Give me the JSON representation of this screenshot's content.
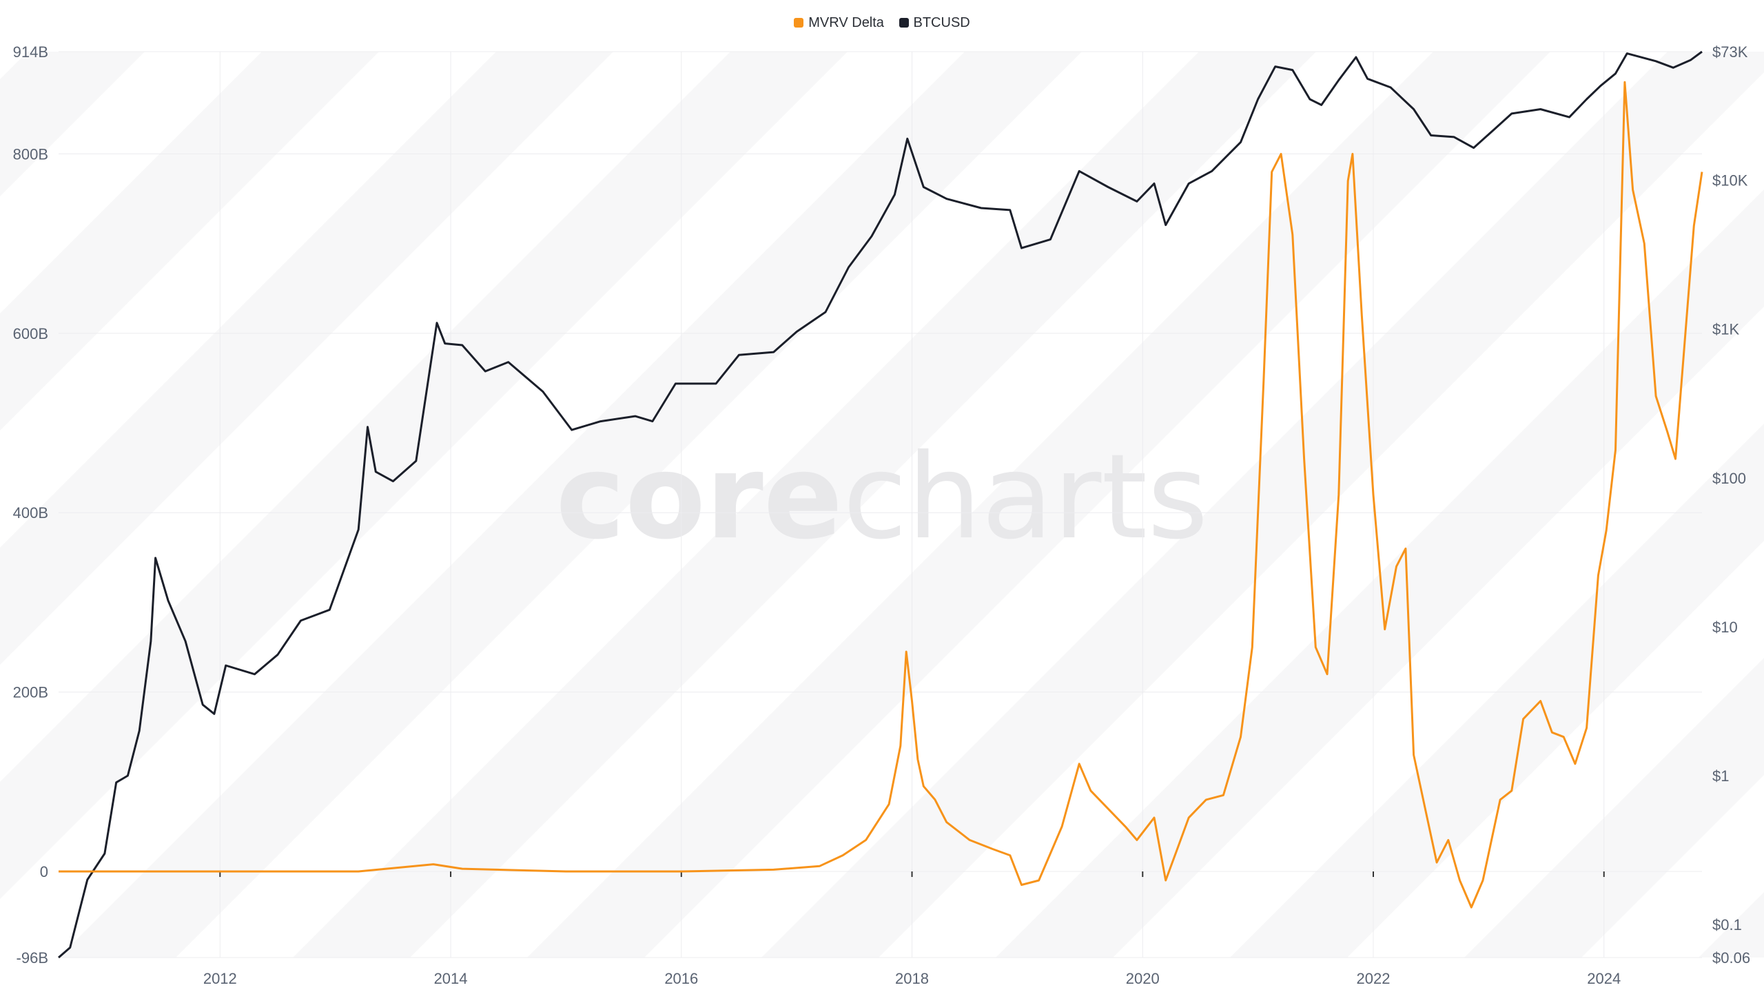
{
  "watermark": {
    "text_core": "core",
    "text_charts": "charts"
  },
  "chart_data": {
    "type": "line",
    "title": "",
    "legend": [
      {
        "name": "MVRV Delta",
        "color": "#f7931a"
      },
      {
        "name": "BTCUSD",
        "color": "#1b1f2a"
      }
    ],
    "legend_position": "top-center",
    "x_range": [
      2010.6,
      2024.85
    ],
    "x_ticks": [
      {
        "value": 2012,
        "label": "2012"
      },
      {
        "value": 2014,
        "label": "2014"
      },
      {
        "value": 2016,
        "label": "2016"
      },
      {
        "value": 2018,
        "label": "2018"
      },
      {
        "value": 2020,
        "label": "2020"
      },
      {
        "value": 2022,
        "label": "2022"
      },
      {
        "value": 2024,
        "label": "2024"
      }
    ],
    "y_left": {
      "unit": "billions USD",
      "range": [
        -96,
        914
      ],
      "ticks": [
        {
          "value": 914,
          "label": "914B"
        },
        {
          "value": 800,
          "label": "800B"
        },
        {
          "value": 600,
          "label": "600B"
        },
        {
          "value": 400,
          "label": "400B"
        },
        {
          "value": 200,
          "label": "200B"
        },
        {
          "value": 0,
          "label": "0"
        },
        {
          "value": -96,
          "label": "-96B"
        }
      ]
    },
    "y_right": {
      "scale": "log",
      "unit": "USD",
      "range": [
        0.06,
        73000
      ],
      "ticks": [
        {
          "value": 73000,
          "label": "$73K"
        },
        {
          "value": 10000,
          "label": "$10K"
        },
        {
          "value": 1000,
          "label": "$1K"
        },
        {
          "value": 100,
          "label": "$100"
        },
        {
          "value": 10,
          "label": "$10"
        },
        {
          "value": 1,
          "label": "$1"
        },
        {
          "value": 0.1,
          "label": "$0.1"
        },
        {
          "value": 0.06,
          "label": "$0.06"
        }
      ]
    },
    "grid": true,
    "series": [
      {
        "name": "MVRV Delta",
        "axis": "left",
        "color": "#f7931a",
        "points": [
          [
            2010.6,
            0
          ],
          [
            2012,
            0
          ],
          [
            2013.2,
            0
          ],
          [
            2013.85,
            8
          ],
          [
            2014.1,
            3
          ],
          [
            2015.0,
            0
          ],
          [
            2016.0,
            0
          ],
          [
            2016.8,
            2
          ],
          [
            2017.2,
            6
          ],
          [
            2017.4,
            18
          ],
          [
            2017.6,
            35
          ],
          [
            2017.8,
            75
          ],
          [
            2017.9,
            140
          ],
          [
            2017.95,
            245
          ],
          [
            2018.0,
            190
          ],
          [
            2018.05,
            125
          ],
          [
            2018.1,
            95
          ],
          [
            2018.2,
            80
          ],
          [
            2018.3,
            55
          ],
          [
            2018.5,
            35
          ],
          [
            2018.7,
            25
          ],
          [
            2018.85,
            18
          ],
          [
            2018.95,
            -15
          ],
          [
            2019.1,
            -10
          ],
          [
            2019.3,
            50
          ],
          [
            2019.45,
            120
          ],
          [
            2019.55,
            90
          ],
          [
            2019.7,
            70
          ],
          [
            2019.85,
            50
          ],
          [
            2019.95,
            35
          ],
          [
            2020.1,
            60
          ],
          [
            2020.2,
            -10
          ],
          [
            2020.3,
            25
          ],
          [
            2020.4,
            60
          ],
          [
            2020.55,
            80
          ],
          [
            2020.7,
            85
          ],
          [
            2020.85,
            150
          ],
          [
            2020.95,
            250
          ],
          [
            2021.05,
            550
          ],
          [
            2021.12,
            780
          ],
          [
            2021.2,
            800
          ],
          [
            2021.3,
            710
          ],
          [
            2021.4,
            460
          ],
          [
            2021.5,
            250
          ],
          [
            2021.6,
            220
          ],
          [
            2021.7,
            420
          ],
          [
            2021.78,
            770
          ],
          [
            2021.82,
            800
          ],
          [
            2021.9,
            620
          ],
          [
            2022.0,
            420
          ],
          [
            2022.1,
            270
          ],
          [
            2022.2,
            340
          ],
          [
            2022.28,
            360
          ],
          [
            2022.35,
            130
          ],
          [
            2022.45,
            70
          ],
          [
            2022.55,
            10
          ],
          [
            2022.65,
            35
          ],
          [
            2022.75,
            -10
          ],
          [
            2022.85,
            -40
          ],
          [
            2022.95,
            -10
          ],
          [
            2023.1,
            80
          ],
          [
            2023.2,
            90
          ],
          [
            2023.3,
            170
          ],
          [
            2023.45,
            190
          ],
          [
            2023.55,
            155
          ],
          [
            2023.65,
            150
          ],
          [
            2023.75,
            120
          ],
          [
            2023.85,
            160
          ],
          [
            2023.95,
            330
          ],
          [
            2024.02,
            380
          ],
          [
            2024.1,
            470
          ],
          [
            2024.18,
            880
          ],
          [
            2024.25,
            760
          ],
          [
            2024.35,
            700
          ],
          [
            2024.45,
            530
          ],
          [
            2024.55,
            490
          ],
          [
            2024.62,
            460
          ],
          [
            2024.7,
            590
          ],
          [
            2024.78,
            720
          ],
          [
            2024.85,
            780
          ]
        ]
      },
      {
        "name": "BTCUSD",
        "axis": "right",
        "color": "#1b1f2a",
        "points": [
          [
            2010.6,
            0.06
          ],
          [
            2010.7,
            0.07
          ],
          [
            2010.85,
            0.2
          ],
          [
            2011.0,
            0.3
          ],
          [
            2011.1,
            0.9
          ],
          [
            2011.2,
            1.0
          ],
          [
            2011.3,
            2.0
          ],
          [
            2011.4,
            8.0
          ],
          [
            2011.44,
            29.0
          ],
          [
            2011.55,
            15.0
          ],
          [
            2011.7,
            8.0
          ],
          [
            2011.85,
            3.0
          ],
          [
            2011.95,
            2.6
          ],
          [
            2012.05,
            5.5
          ],
          [
            2012.3,
            4.8
          ],
          [
            2012.5,
            6.5
          ],
          [
            2012.7,
            11.0
          ],
          [
            2012.95,
            13.0
          ],
          [
            2013.2,
            45.0
          ],
          [
            2013.28,
            220.0
          ],
          [
            2013.35,
            110.0
          ],
          [
            2013.5,
            95.0
          ],
          [
            2013.7,
            130.0
          ],
          [
            2013.88,
            1100.0
          ],
          [
            2013.95,
            800.0
          ],
          [
            2014.1,
            780.0
          ],
          [
            2014.3,
            520.0
          ],
          [
            2014.5,
            600.0
          ],
          [
            2014.8,
            380.0
          ],
          [
            2015.05,
            210.0
          ],
          [
            2015.3,
            240.0
          ],
          [
            2015.6,
            260.0
          ],
          [
            2015.75,
            240.0
          ],
          [
            2015.95,
            430.0
          ],
          [
            2016.3,
            430.0
          ],
          [
            2016.5,
            670.0
          ],
          [
            2016.8,
            700.0
          ],
          [
            2017.0,
            960.0
          ],
          [
            2017.25,
            1300.0
          ],
          [
            2017.45,
            2600.0
          ],
          [
            2017.65,
            4200.0
          ],
          [
            2017.85,
            8000.0
          ],
          [
            2017.96,
            19000.0
          ],
          [
            2018.1,
            9000.0
          ],
          [
            2018.3,
            7500.0
          ],
          [
            2018.6,
            6500.0
          ],
          [
            2018.85,
            6300.0
          ],
          [
            2018.95,
            3500.0
          ],
          [
            2019.2,
            4000.0
          ],
          [
            2019.45,
            11500.0
          ],
          [
            2019.7,
            9000.0
          ],
          [
            2019.95,
            7200.0
          ],
          [
            2020.1,
            9500.0
          ],
          [
            2020.2,
            5000.0
          ],
          [
            2020.4,
            9500.0
          ],
          [
            2020.6,
            11500.0
          ],
          [
            2020.85,
            18000.0
          ],
          [
            2021.0,
            35000.0
          ],
          [
            2021.15,
            58000.0
          ],
          [
            2021.3,
            55000.0
          ],
          [
            2021.45,
            35000.0
          ],
          [
            2021.55,
            32000.0
          ],
          [
            2021.7,
            47000.0
          ],
          [
            2021.85,
            67000.0
          ],
          [
            2021.95,
            48000.0
          ],
          [
            2022.15,
            42000.0
          ],
          [
            2022.35,
            30000.0
          ],
          [
            2022.5,
            20000.0
          ],
          [
            2022.7,
            19500.0
          ],
          [
            2022.87,
            16500.0
          ],
          [
            2023.05,
            22000.0
          ],
          [
            2023.2,
            28000.0
          ],
          [
            2023.45,
            30000.0
          ],
          [
            2023.7,
            26500.0
          ],
          [
            2023.85,
            35000.0
          ],
          [
            2023.97,
            43000.0
          ],
          [
            2024.1,
            52000.0
          ],
          [
            2024.2,
            71000.0
          ],
          [
            2024.45,
            63000.0
          ],
          [
            2024.6,
            57000.0
          ],
          [
            2024.75,
            64000.0
          ],
          [
            2024.85,
            73000.0
          ]
        ]
      }
    ]
  }
}
